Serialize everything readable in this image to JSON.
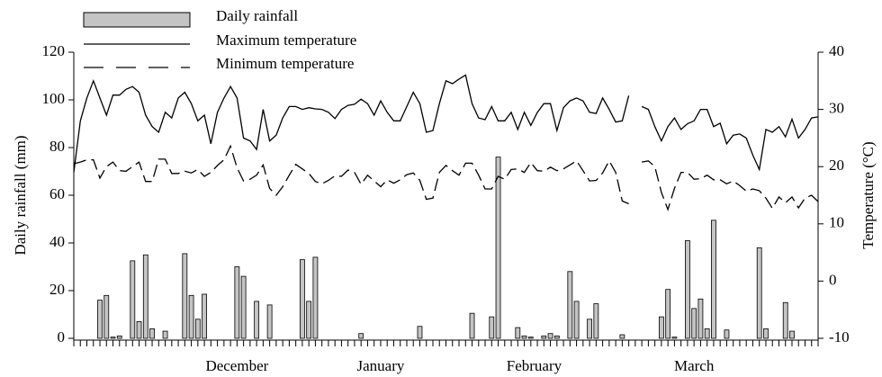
{
  "chart_data": {
    "type": "combo",
    "y_label": "Daily rainfall (mm)",
    "y2_label": "Temperature (°C)",
    "x": [
      0,
      1,
      2,
      3,
      4,
      5,
      6,
      7,
      8,
      9,
      10,
      11,
      12,
      13,
      14,
      15,
      16,
      17,
      18,
      19,
      20,
      21,
      22,
      23,
      24,
      25,
      26,
      27,
      28,
      29,
      30,
      31,
      32,
      33,
      34,
      35,
      36,
      37,
      38,
      39,
      40,
      41,
      42,
      43,
      44,
      45,
      46,
      47,
      48,
      49,
      50,
      51,
      52,
      53,
      54,
      55,
      56,
      57,
      58,
      59,
      60,
      61,
      62,
      63,
      64,
      65,
      66,
      67,
      68,
      69,
      70,
      71,
      72,
      73,
      74,
      75,
      76,
      77,
      78,
      79,
      80,
      81,
      82,
      83,
      84,
      85,
      86,
      87,
      88,
      89,
      90,
      91,
      92,
      93,
      94,
      95,
      96,
      97,
      98,
      99,
      100,
      101,
      102,
      103,
      104,
      105,
      106,
      107,
      108,
      109,
      110,
      111,
      112,
      113,
      114
    ],
    "xlim": [
      0,
      114
    ],
    "xticks": [
      {
        "value": 25,
        "label": "December"
      },
      {
        "value": 47,
        "label": "January"
      },
      {
        "value": 70.5,
        "label": "February"
      },
      {
        "value": 95,
        "label": "March"
      }
    ],
    "ylim": [
      0,
      120
    ],
    "yticks": [
      0,
      20,
      40,
      60,
      80,
      100,
      120
    ],
    "y2lim": [
      -10,
      40
    ],
    "y2ticks": [
      -10,
      0,
      10,
      20,
      30,
      40
    ],
    "series": [
      {
        "name": "Daily rainfall",
        "type": "bar",
        "color": "#c4c4c4",
        "values": [
          0,
          0,
          0,
          0,
          16,
          18,
          0.5,
          1,
          0,
          32.5,
          7,
          35,
          4,
          0,
          3,
          0,
          0,
          35.5,
          18,
          8,
          18.5,
          0,
          0,
          0,
          0,
          30,
          26,
          0,
          15.5,
          0,
          14,
          0,
          0,
          0,
          0,
          33,
          15.5,
          34,
          0,
          0,
          0,
          0,
          0,
          0,
          2,
          0,
          0,
          0,
          0,
          0,
          0,
          0,
          0,
          5,
          0,
          0,
          0,
          0,
          0,
          0,
          0,
          10.5,
          0,
          0,
          9,
          76,
          0,
          0,
          4.5,
          1,
          0.5,
          0,
          1,
          2,
          1,
          0,
          28,
          15.5,
          0,
          8,
          14.5,
          0,
          0,
          0,
          1.5,
          0,
          0,
          0,
          0,
          0,
          9,
          20.5,
          0.5,
          0,
          41,
          12.5,
          16.5,
          4,
          49.5,
          0,
          3.5,
          0,
          0,
          0,
          0,
          38,
          4,
          0,
          0,
          15,
          3,
          0,
          0,
          0,
          0
        ]
      },
      {
        "name": "Maximum temperature",
        "type": "line",
        "axis": "y2",
        "color": "#000000",
        "dashed": false,
        "values": [
          19,
          28,
          32,
          35,
          32,
          29,
          32.5,
          32.5,
          33.5,
          34,
          33,
          29,
          27,
          26,
          29.5,
          28.5,
          32,
          33,
          31,
          28,
          29,
          24,
          29.5,
          32,
          34,
          32,
          25,
          24.5,
          23,
          30,
          24.5,
          25.5,
          28.5,
          30.5,
          30.5,
          30,
          30.3,
          30.1,
          30,
          29.5,
          28.4,
          30,
          30.7,
          30.9,
          31.8,
          31,
          29,
          31.5,
          29.5,
          28,
          28,
          30.5,
          33,
          31,
          26,
          26.3,
          31,
          35,
          34.5,
          35.3,
          36,
          31,
          28.5,
          28.2,
          30.5,
          28,
          28,
          29.5,
          26.5,
          29.5,
          27.2,
          29.5,
          31,
          31,
          26.3,
          30.3,
          31.5,
          32,
          31.5,
          29.5,
          29.3,
          32,
          30,
          27.8,
          28,
          32.4,
          null,
          30.5,
          30,
          27,
          24.5,
          27,
          28.5,
          26.5,
          27.5,
          28,
          30,
          30,
          27,
          27.6,
          24,
          25.5,
          25.7,
          25,
          22,
          19.5,
          26.5,
          26,
          27,
          25.2,
          28.3,
          25,
          26.5,
          28.5,
          28.7
        ]
      },
      {
        "name": "Minimum temperature",
        "type": "line",
        "axis": "y2",
        "color": "#000000",
        "dashed": true,
        "values": [
          20.5,
          20.8,
          21.2,
          21.2,
          18,
          20,
          20.8,
          19.3,
          19.2,
          20,
          20.8,
          17.4,
          17.4,
          21.3,
          21.3,
          18.8,
          18.8,
          19.2,
          18.9,
          19.5,
          18.3,
          19,
          20.2,
          21.2,
          23.6,
          19.8,
          17.5,
          17.8,
          18.5,
          20.3,
          16.2,
          15,
          16.5,
          18.5,
          20.4,
          19.6,
          18.8,
          17.4,
          17,
          17.6,
          18.4,
          18.3,
          19.4,
          19,
          16.9,
          18.5,
          17.5,
          16.5,
          17.7,
          17.1,
          17.7,
          18.6,
          18.9,
          17.6,
          14.3,
          14.5,
          19,
          20.2,
          19.3,
          18.5,
          20.6,
          20.6,
          18.5,
          16.1,
          16.1,
          18.3,
          17.8,
          19.5,
          19.6,
          19,
          20.7,
          19.3,
          19.2,
          19.9,
          19.3,
          19.6,
          20.3,
          21,
          19.3,
          17.5,
          17.6,
          18.9,
          21,
          19,
          14,
          13.5,
          null,
          20.8,
          21,
          20,
          15.5,
          12.5,
          16.2,
          19,
          19,
          17.8,
          17.9,
          18.5,
          17.7,
          17.7,
          17,
          17.5,
          16.7,
          15.7,
          16.1,
          15.8,
          14.5,
          12.7,
          14.7,
          13.7,
          14.7,
          12.8,
          14.5,
          15,
          13.9
        ]
      }
    ]
  }
}
